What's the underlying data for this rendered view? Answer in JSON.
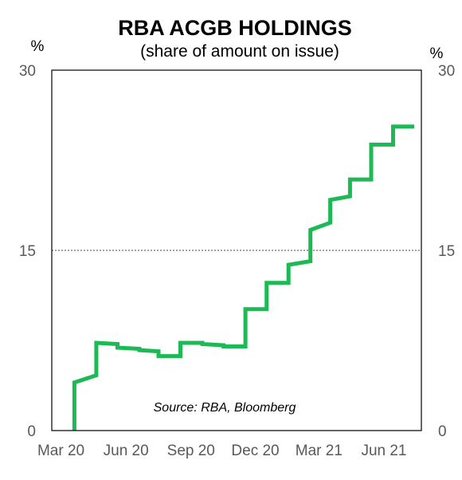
{
  "chart_data": {
    "type": "line",
    "title": "RBA ACGB HOLDINGS",
    "subtitle": "(share of amount on issue)",
    "ylabel_left": "%",
    "ylabel_right": "%",
    "ylim": [
      0,
      30
    ],
    "yticks": [
      "0",
      "15",
      "30"
    ],
    "xticks": [
      {
        "label": "Mar 20",
        "date": "2020-03-01"
      },
      {
        "label": "Jun 20",
        "date": "2020-06-01"
      },
      {
        "label": "Sep 20",
        "date": "2020-09-01"
      },
      {
        "label": "Dec 20",
        "date": "2020-12-01"
      },
      {
        "label": "Mar 21",
        "date": "2021-03-01"
      },
      {
        "label": "Jun 21",
        "date": "2021-06-01"
      }
    ],
    "xlim": [
      "2020-02-17",
      "2021-07-24"
    ],
    "grid": {
      "horizontal_at": 15,
      "style": "dotted"
    },
    "annotation": "Source: RBA, Bloomberg",
    "series": [
      {
        "color": "#1db954",
        "points": [
          [
            "2020-03-20",
            0.0
          ],
          [
            "2020-03-20",
            4.0
          ],
          [
            "2020-04-20",
            4.6
          ],
          [
            "2020-04-20",
            7.3
          ],
          [
            "2020-05-20",
            7.2
          ],
          [
            "2020-05-20",
            6.9
          ],
          [
            "2020-06-20",
            6.8
          ],
          [
            "2020-06-20",
            6.7
          ],
          [
            "2020-07-17",
            6.6
          ],
          [
            "2020-07-17",
            6.2
          ],
          [
            "2020-08-17",
            6.2
          ],
          [
            "2020-08-17",
            7.3
          ],
          [
            "2020-09-17",
            7.3
          ],
          [
            "2020-09-17",
            7.2
          ],
          [
            "2020-10-17",
            7.1
          ],
          [
            "2020-10-17",
            7.0
          ],
          [
            "2020-11-17",
            7.0
          ],
          [
            "2020-11-17",
            10.1
          ],
          [
            "2020-12-17",
            10.1
          ],
          [
            "2020-12-17",
            12.3
          ],
          [
            "2021-01-17",
            12.3
          ],
          [
            "2021-01-17",
            13.8
          ],
          [
            "2021-02-17",
            14.1
          ],
          [
            "2021-02-17",
            16.7
          ],
          [
            "2021-03-17",
            17.3
          ],
          [
            "2021-03-17",
            19.2
          ],
          [
            "2021-04-14",
            19.5
          ],
          [
            "2021-04-14",
            20.9
          ],
          [
            "2021-05-14",
            20.9
          ],
          [
            "2021-05-14",
            23.8
          ],
          [
            "2021-06-14",
            23.8
          ],
          [
            "2021-06-14",
            25.3
          ],
          [
            "2021-07-14",
            25.3
          ]
        ]
      }
    ]
  }
}
